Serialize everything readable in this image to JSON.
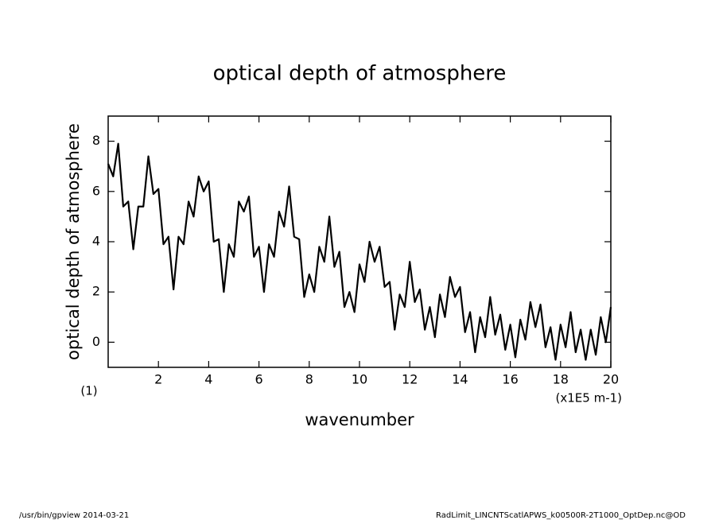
{
  "chart_data": {
    "type": "line",
    "title": "optical depth of atmosphere",
    "xlabel": "wavenumber",
    "ylabel": "optical depth of atmosphere",
    "x_unit": "(x1E5 m-1)",
    "y_unit": "(1)",
    "xlim": [
      0,
      20
    ],
    "ylim": [
      -1,
      9
    ],
    "xticks": [
      2,
      4,
      6,
      8,
      10,
      12,
      14,
      16,
      18,
      20
    ],
    "yticks": [
      0,
      2,
      4,
      6,
      8
    ],
    "grid": false,
    "x": [
      0,
      0.2,
      0.4,
      0.6,
      0.8,
      1,
      1.2,
      1.4,
      1.6,
      1.8,
      2,
      2.2,
      2.4,
      2.6,
      2.8,
      3,
      3.2,
      3.4,
      3.6,
      3.8,
      4,
      4.2,
      4.4,
      4.6,
      4.8,
      5,
      5.2,
      5.4,
      5.6,
      5.8,
      6,
      6.2,
      6.4,
      6.6,
      6.8,
      7,
      7.2,
      7.4,
      7.6,
      7.8,
      8,
      8.2,
      8.4,
      8.6,
      8.8,
      9,
      9.2,
      9.4,
      9.6,
      9.8,
      10,
      10.2,
      10.4,
      10.6,
      10.8,
      11,
      11.2,
      11.4,
      11.6,
      11.8,
      12,
      12.2,
      12.4,
      12.6,
      12.8,
      13,
      13.2,
      13.4,
      13.6,
      13.8,
      14,
      14.2,
      14.4,
      14.6,
      14.8,
      15,
      15.2,
      15.4,
      15.6,
      15.8,
      16,
      16.2,
      16.4,
      16.6,
      16.8,
      17,
      17.2,
      17.4,
      17.6,
      17.8,
      18,
      18.2,
      18.4,
      18.6,
      18.8,
      19,
      19.2,
      19.4,
      19.6,
      19.8,
      20
    ],
    "series": [
      {
        "color": "#000000",
        "values": [
          7.1,
          6.6,
          7.9,
          5.4,
          5.6,
          3.7,
          5.4,
          5.4,
          7.4,
          5.9,
          6.1,
          3.9,
          4.2,
          2.1,
          4.2,
          3.9,
          5.6,
          5.0,
          6.6,
          6.0,
          6.4,
          4.0,
          4.1,
          2.0,
          3.9,
          3.4,
          5.6,
          5.2,
          5.8,
          3.4,
          3.8,
          2.0,
          3.9,
          3.4,
          5.2,
          4.6,
          6.2,
          4.2,
          4.1,
          1.8,
          2.7,
          2.0,
          3.8,
          3.2,
          5.0,
          3.0,
          3.6,
          1.4,
          2.0,
          1.2,
          3.1,
          2.4,
          4.0,
          3.2,
          3.8,
          2.2,
          2.4,
          0.5,
          1.9,
          1.4,
          3.2,
          1.6,
          2.1,
          0.5,
          1.4,
          0.2,
          1.9,
          1.0,
          2.6,
          1.8,
          2.2,
          0.4,
          1.2,
          -0.4,
          1.0,
          0.2,
          1.8,
          0.3,
          1.1,
          -0.3,
          0.7,
          -0.6,
          0.9,
          0.1,
          1.6,
          0.6,
          1.5,
          -0.2,
          0.6,
          -0.7,
          0.7,
          -0.2,
          1.2,
          -0.4,
          0.5,
          -0.7,
          0.5,
          -0.5,
          1.0,
          0.0,
          1.4
        ]
      }
    ],
    "footer_left": "/usr/bin/gpview   2014-03-21",
    "footer_right": "RadLimit_LINCNTScatlAPWS_k00500R-2T1000_OptDep.nc@OD"
  }
}
